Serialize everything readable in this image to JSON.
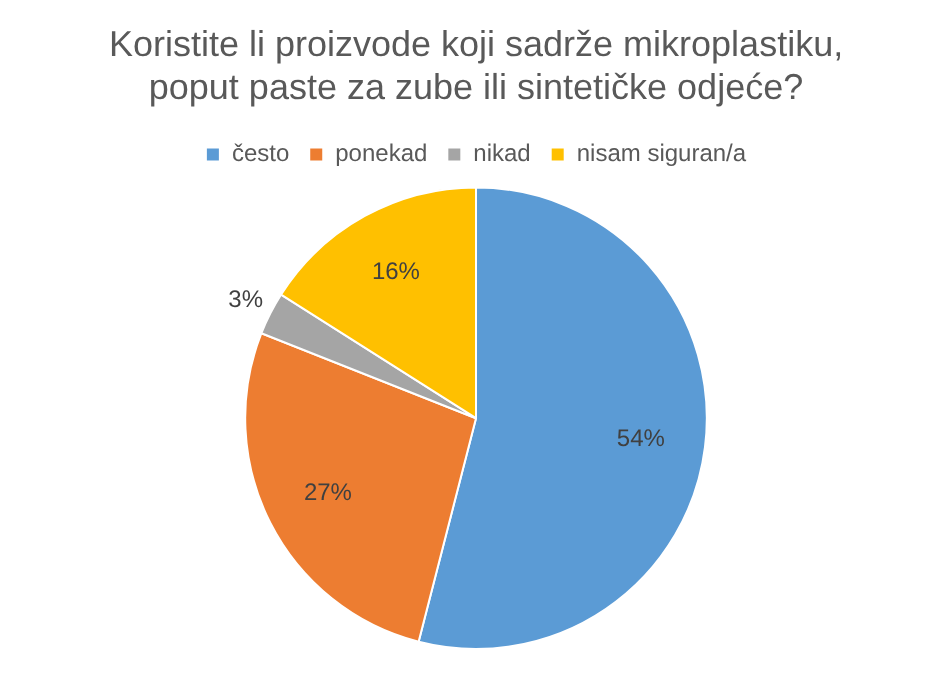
{
  "chart_data": {
    "type": "pie",
    "title": "Koristite li proizvode koji sadrže mikroplastiku, poput paste za zube ili sintetičke odjeće?",
    "categories": [
      "često",
      "ponekad",
      "nikad",
      "nisam siguran/a"
    ],
    "values": [
      54,
      27,
      3,
      16
    ],
    "colors": [
      "#5b9bd5",
      "#ed7d31",
      "#a5a5a5",
      "#ffc000"
    ],
    "value_labels": [
      "54%",
      "27%",
      "3%",
      "16%"
    ],
    "legend": "top"
  }
}
